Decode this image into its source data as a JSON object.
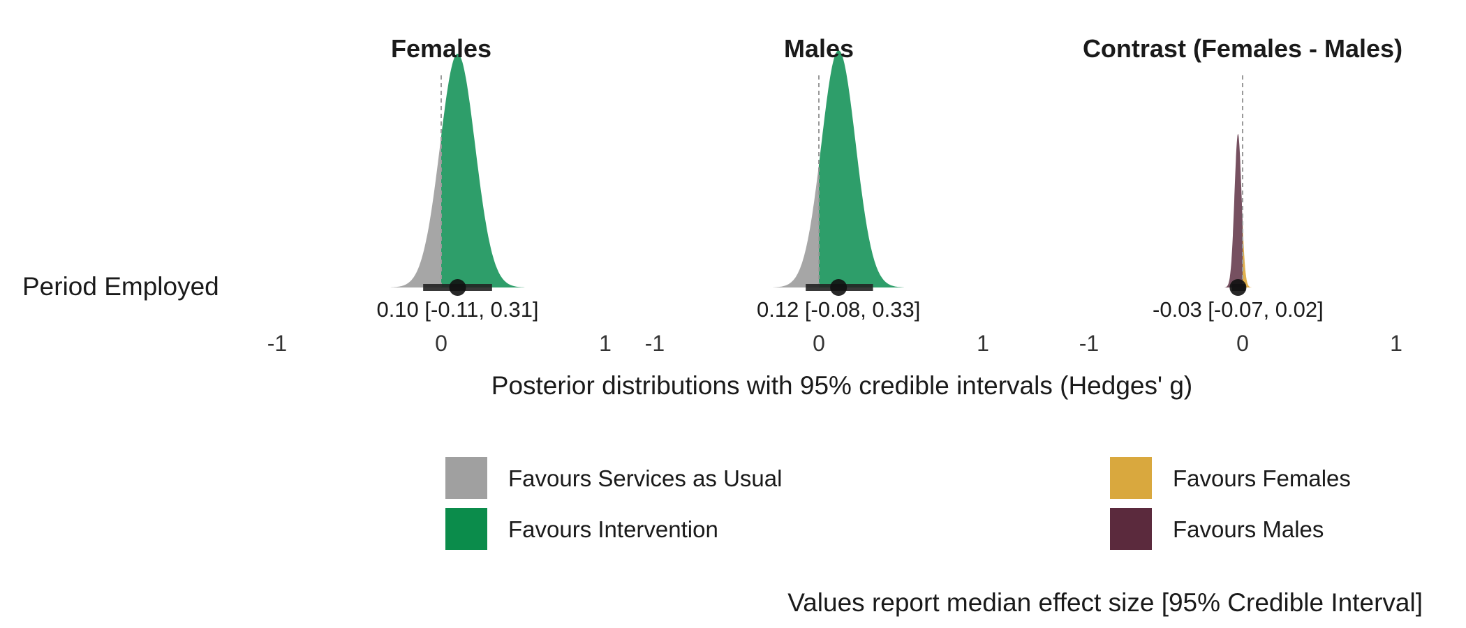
{
  "chart_data": [
    {
      "type": "density",
      "title": "Females",
      "row_label": "Period Employed",
      "xlim": [
        -1,
        1
      ],
      "xticks": [
        -1,
        0,
        1
      ],
      "reference_line": 0,
      "median": 0.1,
      "ci_low": -0.11,
      "ci_high": 0.31,
      "value_label": "0.10 [-0.11, 0.31]",
      "fill_below_zero": "#a6a6a6",
      "fill_above_zero": "#2e9e6a"
    },
    {
      "type": "density",
      "title": "Males",
      "row_label": "Period Employed",
      "xlim": [
        -1,
        1
      ],
      "xticks": [
        -1,
        0,
        1
      ],
      "reference_line": 0,
      "median": 0.12,
      "ci_low": -0.08,
      "ci_high": 0.33,
      "value_label": "0.12 [-0.08, 0.33]",
      "fill_below_zero": "#a6a6a6",
      "fill_above_zero": "#2e9e6a"
    },
    {
      "type": "density",
      "title": "Contrast (Females - Males)",
      "row_label": "Period Employed",
      "xlim": [
        -1,
        1
      ],
      "xticks": [
        -1,
        0,
        1
      ],
      "reference_line": 0,
      "median": -0.03,
      "ci_low": -0.07,
      "ci_high": 0.02,
      "value_label": "-0.03 [-0.07, 0.02]",
      "fill_below_zero": "#765060",
      "fill_above_zero": "#e0b04e"
    }
  ],
  "row_label": "Period Employed",
  "xlabel": "Posterior distributions with 95% credible intervals (Hedges' g)",
  "legend": [
    {
      "label": "Favours Services as Usual",
      "color": "#a0a0a0"
    },
    {
      "label": "Favours Intervention",
      "color": "#0b8c4b"
    },
    {
      "label": "Favours Females",
      "color": "#d9a83e"
    },
    {
      "label": "Favours Males",
      "color": "#5b2a3d"
    }
  ],
  "caption": "Values report median effect size [95% Credible Interval]"
}
